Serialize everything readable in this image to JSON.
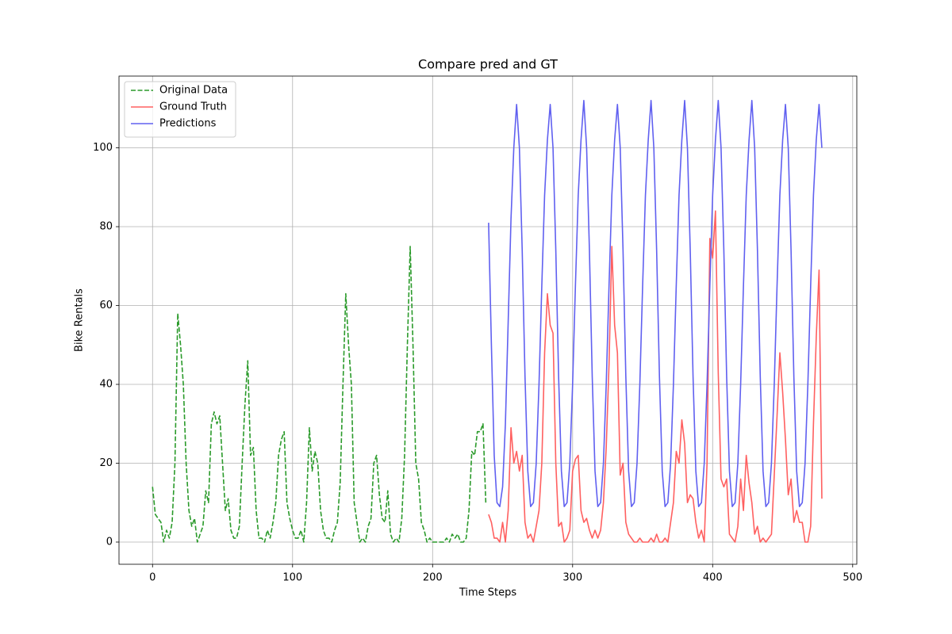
{
  "chart_data": {
    "type": "line",
    "title": "Compare pred and GT",
    "x_label": "Time Steps",
    "y_label": "Bike Rentals",
    "xlim": [
      -23.95,
      502.95
    ],
    "ylim": [
      -5.63,
      118.2
    ],
    "xticks": [
      0,
      100,
      200,
      300,
      400,
      500
    ],
    "yticks": [
      0,
      20,
      40,
      60,
      80,
      100
    ],
    "grid": true,
    "legend": "upper left",
    "series": [
      {
        "name": "Original Data",
        "color": "#2a9a2a",
        "dashed": true,
        "x": [
          0,
          2,
          4,
          6,
          8,
          10,
          12,
          14,
          16,
          18,
          20,
          22,
          24,
          26,
          28,
          30,
          32,
          34,
          36,
          38,
          40,
          42,
          44,
          46,
          48,
          50,
          52,
          54,
          56,
          58,
          60,
          62,
          64,
          66,
          68,
          70,
          72,
          74,
          76,
          78,
          80,
          82,
          84,
          86,
          88,
          90,
          92,
          94,
          96,
          98,
          100,
          102,
          104,
          106,
          108,
          110,
          112,
          114,
          116,
          118,
          120,
          122,
          124,
          126,
          128,
          130,
          132,
          134,
          136,
          138,
          140,
          142,
          144,
          146,
          148,
          150,
          152,
          154,
          156,
          158,
          160,
          162,
          164,
          166,
          168,
          170,
          172,
          174,
          176,
          178,
          180,
          182,
          184,
          186,
          188,
          190,
          192,
          194,
          196,
          198,
          200,
          202,
          204,
          206,
          208,
          210,
          212,
          214,
          216,
          218,
          220,
          222,
          224,
          226,
          228,
          230,
          232,
          234,
          236,
          238
        ],
        "values": [
          14,
          7,
          6,
          5,
          0,
          3,
          1,
          5,
          20,
          58,
          50,
          40,
          20,
          8,
          4,
          6,
          0,
          2,
          4,
          13,
          10,
          30,
          33,
          30,
          32,
          20,
          8,
          11,
          3,
          1,
          1,
          4,
          20,
          35,
          46,
          22,
          24,
          8,
          1,
          1,
          0,
          3,
          1,
          5,
          10,
          22,
          26,
          28,
          10,
          6,
          3,
          1,
          1,
          3,
          0,
          10,
          29,
          18,
          23,
          20,
          8,
          3,
          1,
          1,
          0,
          3,
          5,
          15,
          40,
          63,
          50,
          40,
          10,
          5,
          0,
          1,
          0,
          4,
          6,
          20,
          22,
          12,
          6,
          5,
          13,
          2,
          0,
          1,
          0,
          6,
          22,
          50,
          75,
          50,
          20,
          16,
          5,
          3,
          0,
          1,
          0,
          0,
          0,
          0,
          0,
          1,
          0,
          2,
          1,
          2,
          0,
          0,
          1,
          8,
          23,
          22,
          28,
          28,
          30,
          10
        ]
      },
      {
        "name": "Ground Truth",
        "color": "#ff6060",
        "dashed": false,
        "x": [
          240,
          242,
          244,
          246,
          248,
          250,
          252,
          254,
          256,
          258,
          260,
          262,
          264,
          266,
          268,
          270,
          272,
          274,
          276,
          278,
          280,
          282,
          284,
          286,
          288,
          290,
          292,
          294,
          296,
          298,
          300,
          302,
          304,
          306,
          308,
          310,
          312,
          314,
          316,
          318,
          320,
          322,
          324,
          326,
          328,
          330,
          332,
          334,
          336,
          338,
          340,
          342,
          344,
          346,
          348,
          350,
          352,
          354,
          356,
          358,
          360,
          362,
          364,
          366,
          368,
          370,
          372,
          374,
          376,
          378,
          380,
          382,
          384,
          386,
          388,
          390,
          392,
          394,
          396,
          398,
          400,
          402,
          404,
          406,
          408,
          410,
          412,
          414,
          416,
          418,
          420,
          422,
          424,
          426,
          428,
          430,
          432,
          434,
          436,
          438,
          440,
          442,
          444,
          446,
          448,
          450,
          452,
          454,
          456,
          458,
          460,
          462,
          464,
          466,
          468,
          470,
          472,
          474,
          476,
          478
        ],
        "values": [
          7,
          5,
          1,
          1,
          0,
          5,
          0,
          8,
          29,
          20,
          23,
          18,
          22,
          5,
          1,
          2,
          0,
          4,
          8,
          20,
          48,
          63,
          55,
          53,
          20,
          4,
          5,
          0,
          1,
          3,
          18,
          21,
          22,
          8,
          5,
          6,
          3,
          1,
          3,
          1,
          3,
          10,
          24,
          45,
          75,
          55,
          48,
          17,
          20,
          5,
          2,
          1,
          0,
          0,
          1,
          0,
          0,
          0,
          1,
          0,
          2,
          0,
          0,
          1,
          0,
          5,
          10,
          23,
          20,
          31,
          25,
          10,
          12,
          11,
          5,
          1,
          3,
          0,
          20,
          77,
          72,
          84,
          43,
          16,
          14,
          16,
          2,
          1,
          0,
          4,
          16,
          8,
          22,
          15,
          10,
          2,
          4,
          0,
          1,
          0,
          1,
          2,
          17,
          32,
          48,
          38,
          26,
          12,
          16,
          5,
          8,
          5,
          5,
          0,
          0,
          4,
          30,
          52,
          69,
          11
        ]
      },
      {
        "name": "Predictions",
        "color": "#6060f0",
        "dashed": false,
        "x": [
          240,
          242,
          244,
          246,
          248,
          250,
          252,
          254,
          256,
          258,
          260,
          262,
          264,
          266,
          268,
          270,
          272,
          274,
          276,
          278,
          280,
          282,
          284,
          286,
          288,
          290,
          292,
          294,
          296,
          298,
          300,
          302,
          304,
          306,
          308,
          310,
          312,
          314,
          316,
          318,
          320,
          322,
          324,
          326,
          328,
          330,
          332,
          334,
          336,
          338,
          340,
          342,
          344,
          346,
          348,
          350,
          352,
          354,
          356,
          358,
          360,
          362,
          364,
          366,
          368,
          370,
          372,
          374,
          376,
          378,
          380,
          382,
          384,
          386,
          388,
          390,
          392,
          394,
          396,
          398,
          400,
          402,
          404,
          406,
          408,
          410,
          412,
          414,
          416,
          418,
          420,
          422,
          424,
          426,
          428,
          430,
          432,
          434,
          436,
          438,
          440,
          442,
          444,
          446,
          448,
          450,
          452,
          454,
          456,
          458,
          460,
          462,
          464,
          466,
          468,
          470,
          472,
          474,
          476,
          478
        ],
        "values": [
          81,
          50,
          22,
          10,
          9,
          14,
          30,
          56,
          82,
          100,
          111,
          100,
          74,
          42,
          18,
          9,
          10,
          20,
          40,
          65,
          88,
          102,
          111,
          100,
          74,
          42,
          18,
          9,
          10,
          20,
          40,
          65,
          88,
          102,
          112,
          100,
          74,
          42,
          18,
          9,
          10,
          20,
          40,
          65,
          88,
          102,
          111,
          100,
          74,
          42,
          18,
          9,
          10,
          20,
          40,
          65,
          88,
          102,
          112,
          100,
          74,
          42,
          18,
          9,
          10,
          20,
          40,
          65,
          88,
          102,
          112,
          100,
          74,
          42,
          18,
          9,
          10,
          20,
          40,
          65,
          88,
          102,
          112,
          100,
          74,
          42,
          18,
          9,
          10,
          20,
          40,
          65,
          88,
          102,
          112,
          100,
          74,
          42,
          18,
          9,
          10,
          20,
          40,
          65,
          88,
          102,
          111,
          100,
          74,
          42,
          18,
          9,
          10,
          20,
          40,
          65,
          88,
          102,
          111,
          100
        ]
      }
    ]
  }
}
